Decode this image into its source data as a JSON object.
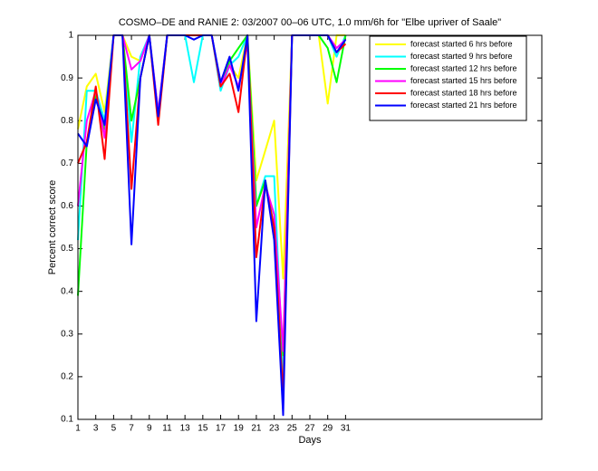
{
  "chart_data": {
    "type": "line",
    "title": "COSMO–DE and RANIE 2: 03/2007 00–06 UTC, 1.0 mm/6h for \"Elbe upriver of Saale\"",
    "x_label": "Days",
    "y_label": "Percent correct score",
    "x": [
      1,
      2,
      3,
      4,
      5,
      6,
      7,
      8,
      9,
      10,
      11,
      12,
      13,
      14,
      15,
      16,
      17,
      18,
      19,
      20,
      21,
      22,
      23,
      24,
      25,
      26,
      27,
      28,
      29,
      30,
      31
    ],
    "xlim": [
      1,
      53
    ],
    "xticks": [
      1,
      3,
      5,
      7,
      9,
      11,
      13,
      15,
      17,
      19,
      21,
      23,
      25,
      27,
      29,
      31
    ],
    "ylim": [
      0.1,
      1
    ],
    "yticks": [
      0.1,
      0.2,
      0.3,
      0.4,
      0.5,
      0.6,
      0.7,
      0.8,
      0.9,
      1
    ],
    "legend_position": "upper right",
    "series": [
      {
        "name": "forecast started 6 hrs before",
        "color": "#ffff00",
        "values": [
          0.78,
          0.88,
          0.91,
          0.82,
          1,
          1,
          0.95,
          0.94,
          1,
          0.82,
          1,
          1,
          1,
          1,
          1,
          1,
          0.88,
          0.93,
          0.9,
          1,
          0.66,
          0.73,
          0.8,
          0.43,
          1,
          1,
          1,
          1,
          0.84,
          1,
          1
        ]
      },
      {
        "name": "forecast started 9 hrs before",
        "color": "#00ffff",
        "values": [
          0.52,
          0.87,
          0.87,
          0.8,
          1,
          1,
          0.75,
          0.95,
          1,
          0.82,
          1,
          1,
          1,
          0.89,
          1,
          1,
          0.87,
          0.93,
          0.95,
          1,
          0.6,
          0.67,
          0.67,
          0.2,
          1,
          1,
          1,
          1,
          1,
          0.95,
          1
        ]
      },
      {
        "name": "forecast started 12 hrs before",
        "color": "#00ff00",
        "values": [
          0.39,
          0.75,
          0.86,
          0.78,
          1,
          1,
          0.8,
          0.9,
          1,
          0.8,
          1,
          1,
          1,
          1,
          1,
          1,
          0.88,
          0.94,
          0.97,
          1,
          0.6,
          0.66,
          0.55,
          0.25,
          1,
          1,
          1,
          1,
          0.97,
          0.89,
          1
        ]
      },
      {
        "name": "forecast started 15 hrs before",
        "color": "#ff00ff",
        "values": [
          0.6,
          0.8,
          0.87,
          0.76,
          1,
          1,
          0.92,
          0.94,
          1,
          0.82,
          1,
          1,
          1,
          1,
          1,
          1,
          0.88,
          0.93,
          0.88,
          0.98,
          0.55,
          0.65,
          0.58,
          0.26,
          1,
          1,
          1,
          1,
          1,
          0.97,
          0.99
        ]
      },
      {
        "name": "forecast started 18 hrs before",
        "color": "#ff0000",
        "values": [
          0.7,
          0.75,
          0.88,
          0.71,
          1,
          1,
          0.64,
          0.9,
          1,
          0.79,
          1,
          1,
          1,
          1,
          1,
          1,
          0.88,
          0.91,
          0.82,
          1,
          0.48,
          0.65,
          0.55,
          0.15,
          1,
          1,
          1,
          1,
          1,
          0.96,
          0.98
        ]
      },
      {
        "name": "forecast started 21 hrs before",
        "color": "#0000ff",
        "values": [
          0.77,
          0.74,
          0.85,
          0.79,
          1,
          1,
          0.51,
          0.9,
          1,
          0.81,
          1,
          1,
          1,
          0.99,
          1,
          1,
          0.89,
          0.95,
          0.87,
          1,
          0.33,
          0.66,
          0.52,
          0.11,
          1,
          1,
          1,
          1,
          1,
          0.96,
          0.99
        ]
      }
    ]
  }
}
